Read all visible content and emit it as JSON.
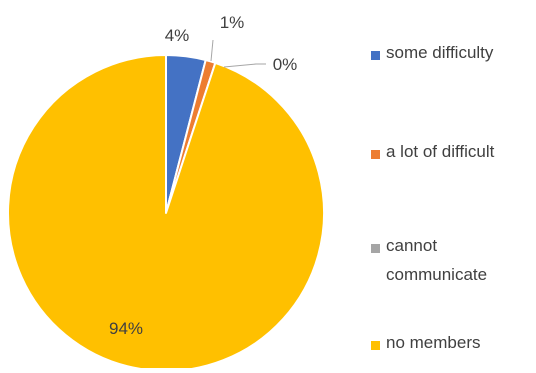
{
  "chart_data": {
    "type": "pie",
    "categories": [
      "some difficulty",
      "a lot of difficult",
      "cannot communicate",
      "no members"
    ],
    "values": [
      4,
      1,
      0,
      94
    ],
    "data_labels": [
      "4%",
      "1%",
      "0%",
      "94%"
    ],
    "colors": [
      "#4472C4",
      "#ED7D31",
      "#A5A5A5",
      "#FFC000"
    ],
    "legend": {
      "placement": "right",
      "entries": [
        {
          "lines": [
            "some difficulty"
          ]
        },
        {
          "lines": [
            "a lot of difficult"
          ]
        },
        {
          "lines": [
            "cannot",
            "communicate"
          ]
        },
        {
          "lines": [
            "no members"
          ]
        }
      ]
    }
  }
}
